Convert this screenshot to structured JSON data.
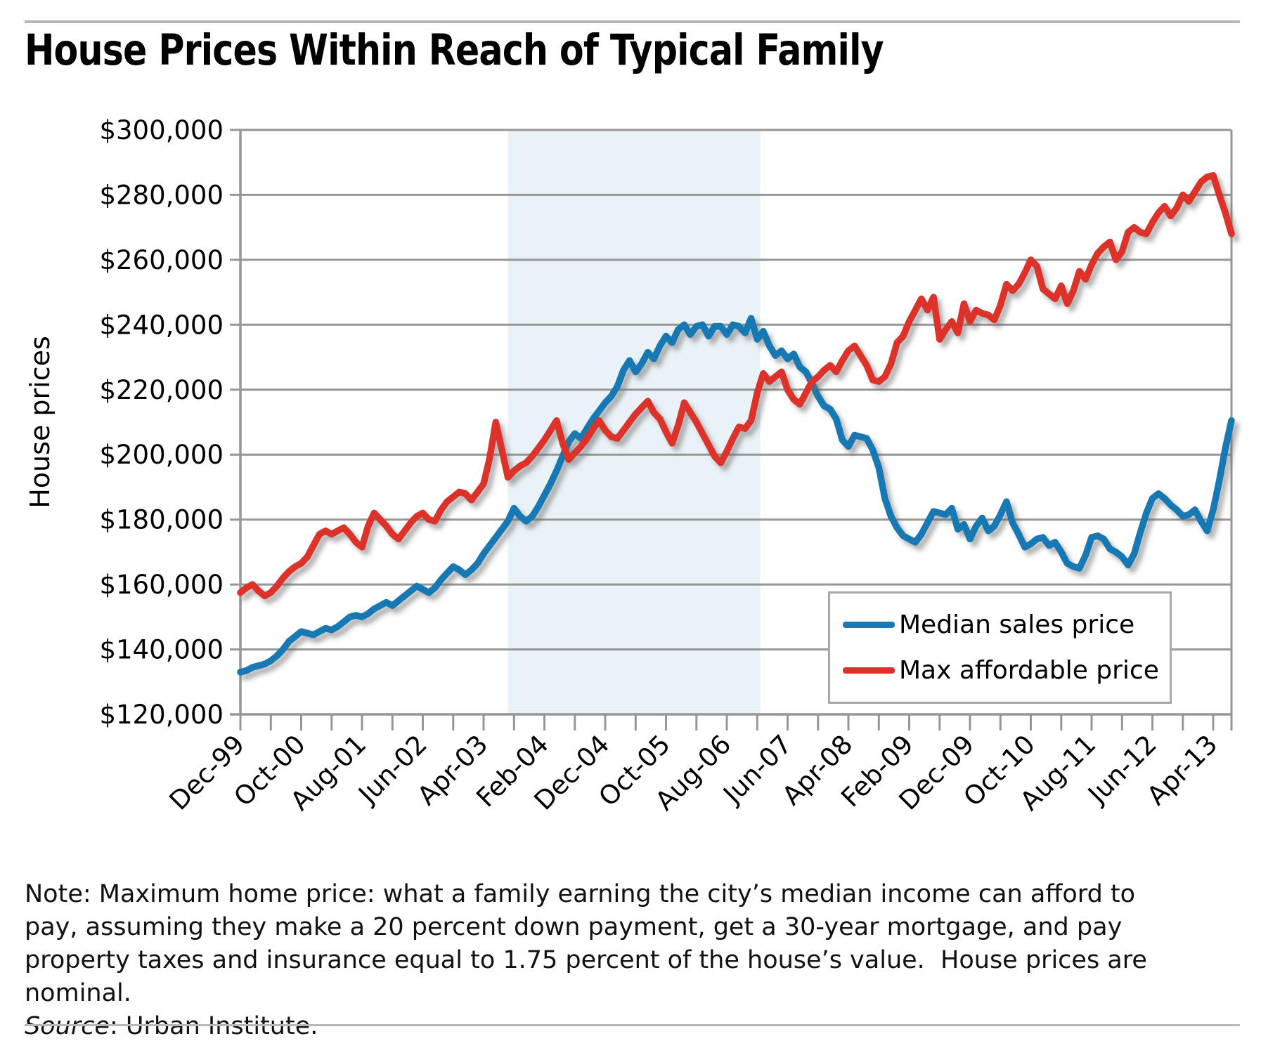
{
  "page": {
    "title": "House Prices Within Reach of Typical Family"
  },
  "legend": {
    "items": [
      {
        "label": "Median sales price",
        "color": "#1879b4"
      },
      {
        "label": "Max affordable price",
        "color": "#dc322b"
      }
    ]
  },
  "note": {
    "lines": [
      "Note: Maximum home price: what a family earning the city’s median income can afford to",
      "pay, assuming they make a 20 percent down payment, get a 30-year mortgage, and pay",
      "property taxes and insurance equal to 1.75 percent of the house’s value.  House prices are",
      "nominal."
    ],
    "source_label": "Source",
    "source_rest": ": Urban Institute."
  },
  "colors": {
    "grid": "#969696",
    "axis": "#969696",
    "band": "#e9f2f7",
    "rule": "#b7b7b7",
    "legend_border": "#a8a8a8",
    "series_blue": "#1879b4",
    "series_red": "#dc322b",
    "shadow": "#666666"
  },
  "chart_data": {
    "type": "line",
    "title": "House Prices Within Reach of Typical Family",
    "xlabel": "",
    "ylabel": "House prices",
    "ylim": [
      120000,
      300000
    ],
    "ytick_step": 20000,
    "ytick_labels": [
      "$300,000",
      "$280,000",
      "$260,000",
      "$240,000",
      "$220,000",
      "$200,000",
      "$180,000",
      "$160,000",
      "$140,000",
      "$120,000"
    ],
    "xtick_labels": [
      "Dec-99",
      "Oct-00",
      "Aug-01",
      "Jun-02",
      "Apr-03",
      "Feb-04",
      "Dec-04",
      "Oct-05",
      "Aug-06",
      "Jun-07",
      "Apr-08",
      "Feb-09",
      "Dec-09",
      "Oct-10",
      "Aug-11",
      "Jun-12",
      "Apr-13"
    ],
    "months_total": 163,
    "label_every_months": 10,
    "minor_tick_every_months": 5,
    "shaded_band_months": [
      44,
      85.5
    ],
    "grid": "horizontal",
    "legend_position": "lower right",
    "series": [
      {
        "name": "Median sales price",
        "color": "#1879b4",
        "values_thousands": [
          133,
          133.5,
          134.5,
          135,
          135.5,
          136.5,
          138,
          140,
          142.5,
          144,
          145.5,
          145,
          144.5,
          145.5,
          146.5,
          146,
          147,
          148.5,
          150,
          150.5,
          150,
          151,
          152.5,
          153.5,
          154.5,
          153.5,
          155,
          156.5,
          158,
          159.5,
          158.5,
          157.5,
          159,
          161.5,
          163.5,
          165.5,
          164.5,
          163,
          164.5,
          166.5,
          169.5,
          172,
          174.5,
          177,
          179.5,
          183.5,
          181,
          179.5,
          181,
          184,
          187.5,
          191,
          195,
          199.5,
          204,
          206.5,
          205,
          208,
          211,
          213.5,
          216,
          218,
          221,
          226,
          229,
          225.5,
          228,
          231.5,
          229.5,
          233.5,
          236.5,
          234.5,
          238.5,
          240,
          237,
          239.5,
          240,
          236.5,
          239.5,
          239.5,
          237,
          240,
          239.5,
          237.5,
          242,
          235.5,
          238,
          233.5,
          230.5,
          232,
          229.5,
          231,
          227,
          225.5,
          222,
          218,
          215,
          214,
          211,
          204.5,
          202.5,
          206,
          205.5,
          205,
          201.5,
          196,
          186.5,
          181,
          177.5,
          175,
          174,
          173,
          175.5,
          179,
          182.5,
          182,
          181.5,
          183.5,
          177,
          178.5,
          174,
          178,
          180.5,
          176.5,
          178,
          181.5,
          185.5,
          179,
          175.5,
          171.5,
          172.5,
          174,
          174.5,
          172,
          173,
          170,
          166.5,
          165.5,
          165,
          169,
          174.5,
          175,
          174,
          171,
          170,
          168.5,
          166,
          169.5,
          176,
          182,
          186.5,
          188,
          186.5,
          184.5,
          183,
          181,
          181.5,
          183,
          179.5,
          176.5,
          183,
          192,
          202,
          210.5
        ]
      },
      {
        "name": "Max affordable price",
        "color": "#dc322b",
        "values_thousands": [
          157.5,
          159,
          160,
          158,
          156.5,
          157.5,
          159.5,
          162,
          164,
          165.5,
          166.5,
          168.5,
          172,
          175.5,
          176.5,
          175.5,
          176.5,
          177.5,
          175.5,
          173,
          171.5,
          178,
          182,
          180,
          178,
          175.5,
          174,
          176.5,
          179,
          181,
          182,
          180,
          179.5,
          183,
          185.5,
          187,
          188.5,
          188,
          186,
          188.5,
          191,
          199,
          210,
          201.5,
          193,
          195,
          196.5,
          197.5,
          199.5,
          202,
          204.5,
          207.5,
          210.5,
          203.5,
          198.5,
          200.5,
          202.5,
          205,
          208,
          210.5,
          207.5,
          205.5,
          205,
          207.5,
          210,
          212.5,
          214.5,
          216.5,
          213,
          211,
          207,
          203.5,
          209,
          216,
          213,
          210,
          206.5,
          203,
          199.5,
          197.5,
          201,
          205,
          208.5,
          208,
          210.5,
          219,
          225,
          222.5,
          224,
          225.5,
          220,
          217,
          215.5,
          219,
          222.5,
          224,
          226,
          227.5,
          225.5,
          229,
          232,
          233.5,
          230.5,
          227.5,
          223,
          222.5,
          224,
          228,
          234.5,
          236.5,
          241,
          244.5,
          248,
          244.5,
          248.5,
          235.5,
          238.5,
          241,
          237.5,
          246.5,
          241,
          244.5,
          243.5,
          243,
          241.5,
          246,
          252.5,
          250.5,
          252.5,
          256,
          260,
          258,
          251,
          249.5,
          248,
          252,
          246.5,
          250.5,
          256.5,
          254,
          258.5,
          262,
          264,
          265.5,
          260,
          262.5,
          268.5,
          270,
          268.5,
          268,
          271.5,
          274.5,
          276.5,
          273.5,
          276,
          280,
          278,
          281,
          284,
          285.5,
          286,
          280,
          274.5,
          268
        ]
      }
    ]
  }
}
